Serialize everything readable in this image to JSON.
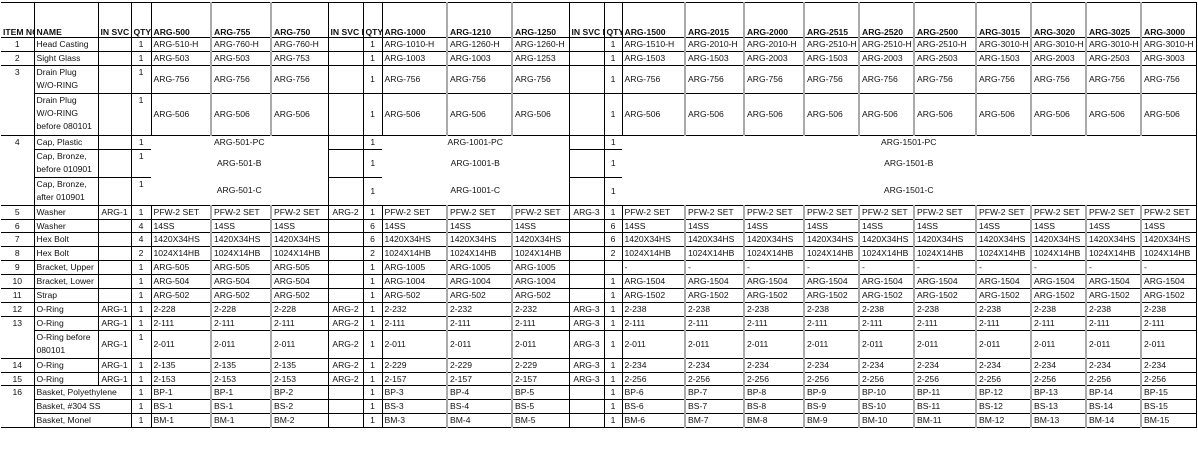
{
  "header": {
    "item_no": "ITEM NO",
    "name": "NAME",
    "kit": "IN SVC KIT",
    "qty": "QTY",
    "groups": [
      [
        "ARG-500",
        "ARG-755",
        "ARG-750"
      ],
      [
        "ARG-1000",
        "ARG-1210",
        "ARG-1250"
      ],
      [
        "ARG-1500",
        "ARG-2015",
        "ARG-2000",
        "ARG-2515",
        "ARG-2520",
        "ARG-2500",
        "ARG-3015",
        "ARG-3020",
        "ARG-3025",
        "ARG-3000"
      ]
    ]
  },
  "rows": [
    {
      "item": "1",
      "name": "Head Casting",
      "lines": 1,
      "kits": [
        "",
        "",
        ""
      ],
      "qty": [
        "1",
        "1",
        "1"
      ],
      "values": [
        "ARG-510-H",
        "ARG-760-H",
        "ARG-760-H",
        "ARG-1010-H",
        "ARG-1260-H",
        "ARG-1260-H",
        "ARG-1510-H",
        "ARG-2010-H",
        "ARG-2010-H",
        "ARG-2510-H",
        "ARG-2510-H",
        "ARG-2510-H",
        "ARG-3010-H",
        "ARG-3010-H",
        "ARG-3010-H",
        "ARG-3010-H"
      ]
    },
    {
      "item": "2",
      "name": "Sight Glass",
      "lines": 1,
      "kits": [
        "",
        "",
        ""
      ],
      "qty": [
        "1",
        "1",
        "1"
      ],
      "values": [
        "ARG-503",
        "ARG-503",
        "ARG-753",
        "ARG-1003",
        "ARG-1003",
        "ARG-1253",
        "ARG-1503",
        "ARG-1503",
        "ARG-2003",
        "ARG-1503",
        "ARG-2003",
        "ARG-2503",
        "ARG-1503",
        "ARG-2003",
        "ARG-2503",
        "ARG-3003"
      ]
    },
    {
      "item": "3",
      "name": "Drain Plug W/O-RING",
      "lines": 2,
      "kits": [
        "",
        "",
        ""
      ],
      "qty": [
        "1",
        "1",
        "1"
      ],
      "values": [
        "ARG-756",
        "ARG-756",
        "ARG-756",
        "ARG-756",
        "ARG-756",
        "ARG-756",
        "ARG-756",
        "ARG-756",
        "ARG-756",
        "ARG-756",
        "ARG-756",
        "ARG-756",
        "ARG-756",
        "ARG-756",
        "ARG-756",
        "ARG-756"
      ]
    },
    {
      "item": "",
      "name": "Drain Plug W/O-RING before 080101",
      "lines": 3,
      "kits": [
        "",
        "",
        ""
      ],
      "qty": [
        "1",
        "1",
        "1"
      ],
      "values": [
        "ARG-506",
        "ARG-506",
        "ARG-506",
        "ARG-506",
        "ARG-506",
        "ARG-506",
        "ARG-506",
        "ARG-506",
        "ARG-506",
        "ARG-506",
        "ARG-506",
        "ARG-506",
        "ARG-506",
        "ARG-506",
        "ARG-506",
        "ARG-506"
      ]
    },
    {
      "item": "4",
      "name": "Cap, Plastic",
      "lines": 1,
      "kits": [
        "",
        "",
        ""
      ],
      "qty": [
        "1",
        "1",
        "1"
      ],
      "merged": [
        "ARG-501-PC",
        "ARG-1001-PC",
        "ARG-1501-PC"
      ]
    },
    {
      "item": "",
      "name": "Cap, Bronze, before 010901",
      "lines": 2,
      "kits": [
        "",
        "",
        ""
      ],
      "qty": [
        "1",
        "1",
        "1"
      ],
      "merged": [
        "ARG-501-B",
        "ARG-1001-B",
        "ARG-1501-B"
      ]
    },
    {
      "item": "",
      "name": "Cap, Bronze, after 010901",
      "lines": 2,
      "kits": [
        "",
        "",
        ""
      ],
      "qty": [
        "1",
        "1",
        "1"
      ],
      "merged": [
        "ARG-501-C",
        "ARG-1001-C",
        "ARG-1501-C"
      ]
    },
    {
      "item": "5",
      "name": "Washer",
      "lines": 1,
      "kits": [
        "ARG-1",
        "ARG-2",
        "ARG-3"
      ],
      "qty": [
        "1",
        "1",
        "1"
      ],
      "values": [
        "PFW-2 SET",
        "PFW-2 SET",
        "PFW-2 SET",
        "PFW-2 SET",
        "PFW-2 SET",
        "PFW-2 SET",
        "PFW-2 SET",
        "PFW-2 SET",
        "PFW-2 SET",
        "PFW-2 SET",
        "PFW-2 SET",
        "PFW-2 SET",
        "PFW-2 SET",
        "PFW-2 SET",
        "PFW-2 SET",
        "PFW-2 SET"
      ]
    },
    {
      "item": "6",
      "name": "Washer",
      "lines": 1,
      "kits": [
        "",
        "",
        ""
      ],
      "qty": [
        "4",
        "6",
        "6"
      ],
      "values": [
        "14SS",
        "14SS",
        "14SS",
        "14SS",
        "14SS",
        "14SS",
        "14SS",
        "14SS",
        "14SS",
        "14SS",
        "14SS",
        "14SS",
        "14SS",
        "14SS",
        "14SS",
        "14SS"
      ]
    },
    {
      "item": "7",
      "name": "Hex Bolt",
      "lines": 1,
      "kits": [
        "",
        "",
        ""
      ],
      "qty": [
        "4",
        "6",
        "6"
      ],
      "values": [
        "1420X34HS",
        "1420X34HS",
        "1420X34HS",
        "1420X34HS",
        "1420X34HS",
        "1420X34HS",
        "1420X34HS",
        "1420X34HS",
        "1420X34HS",
        "1420X34HS",
        "1420X34HS",
        "1420X34HS",
        "1420X34HS",
        "1420X34HS",
        "1420X34HS",
        "1420X34HS"
      ]
    },
    {
      "item": "8",
      "name": "Hex Bolt",
      "lines": 1,
      "kits": [
        "",
        "",
        ""
      ],
      "qty": [
        "2",
        "2",
        "2"
      ],
      "values": [
        "1024X14HB",
        "1024X14HB",
        "1024X14HB",
        "1024X14HB",
        "1024X14HB",
        "1024X14HB",
        "1024X14HB",
        "1024X14HB",
        "1024X14HB",
        "1024X14HB",
        "1024X14HB",
        "1024X14HB",
        "1024X14HB",
        "1024X14HB",
        "1024X14HB",
        "1024X14HB"
      ]
    },
    {
      "item": "9",
      "name": "Bracket, Upper",
      "lines": 1,
      "kits": [
        "",
        "",
        ""
      ],
      "qty": [
        "1",
        "1",
        ""
      ],
      "values": [
        "ARG-505",
        "ARG-505",
        "ARG-505",
        "ARG-1005",
        "ARG-1005",
        "ARG-1005",
        "-",
        "-",
        "-",
        "-",
        "-",
        "-",
        "-",
        "-",
        "-",
        "-"
      ]
    },
    {
      "item": "10",
      "name": "Bracket, Lower",
      "lines": 1,
      "kits": [
        "",
        "",
        ""
      ],
      "qty": [
        "1",
        "1",
        "1"
      ],
      "values": [
        "ARG-504",
        "ARG-504",
        "ARG-504",
        "ARG-1004",
        "ARG-1004",
        "ARG-1004",
        "ARG-1504",
        "ARG-1504",
        "ARG-1504",
        "ARG-1504",
        "ARG-1504",
        "ARG-1504",
        "ARG-1504",
        "ARG-1504",
        "ARG-1504",
        "ARG-1504"
      ]
    },
    {
      "item": "11",
      "name": "Strap",
      "lines": 1,
      "kits": [
        "",
        "",
        ""
      ],
      "qty": [
        "1",
        "1",
        "1"
      ],
      "values": [
        "ARG-502",
        "ARG-502",
        "ARG-502",
        "ARG-502",
        "ARG-502",
        "ARG-502",
        "ARG-1502",
        "ARG-1502",
        "ARG-1502",
        "ARG-1502",
        "ARG-1502",
        "ARG-1502",
        "ARG-1502",
        "ARG-1502",
        "ARG-1502",
        "ARG-1502"
      ]
    },
    {
      "item": "12",
      "name": "O-Ring",
      "lines": 1,
      "kits": [
        "ARG-1",
        "ARG-2",
        "ARG-3"
      ],
      "qty": [
        "1",
        "1",
        "1"
      ],
      "values": [
        "2-228",
        "2-228",
        "2-228",
        "2-232",
        "2-232",
        "2-232",
        "2-238",
        "2-238",
        "2-238",
        "2-238",
        "2-238",
        "2-238",
        "2-238",
        "2-238",
        "2-238",
        "2-238"
      ]
    },
    {
      "item": "13",
      "name": "O-Ring",
      "lines": 1,
      "kits": [
        "ARG-1",
        "ARG-2",
        "ARG-3"
      ],
      "qty": [
        "1",
        "1",
        "1"
      ],
      "values": [
        "2-111",
        "2-111",
        "2-111",
        "2-111",
        "2-111",
        "2-111",
        "2-111",
        "2-111",
        "2-111",
        "2-111",
        "2-111",
        "2-111",
        "2-111",
        "2-111",
        "2-111",
        "2-111"
      ]
    },
    {
      "item": "",
      "name": "O-Ring before 080101",
      "lines": 2,
      "kits": [
        "ARG-1",
        "ARG-2",
        "ARG-3"
      ],
      "qty": [
        "1",
        "1",
        "1"
      ],
      "values": [
        "2-011",
        "2-011",
        "2-011",
        "2-011",
        "2-011",
        "2-011",
        "2-011",
        "2-011",
        "2-011",
        "2-011",
        "2-011",
        "2-011",
        "2-011",
        "2-011",
        "2-011",
        "2-011"
      ]
    },
    {
      "item": "14",
      "name": "O-Ring",
      "lines": 1,
      "kits": [
        "ARG-1",
        "ARG-2",
        "ARG-3"
      ],
      "qty": [
        "1",
        "1",
        "1"
      ],
      "values": [
        "2-135",
        "2-135",
        "2-135",
        "2-229",
        "2-229",
        "2-229",
        "2-234",
        "2-234",
        "2-234",
        "2-234",
        "2-234",
        "2-234",
        "2-234",
        "2-234",
        "2-234",
        "2-234"
      ]
    },
    {
      "item": "15",
      "name": "O-Ring",
      "lines": 1,
      "kits": [
        "ARG-1",
        "ARG-2",
        "ARG-3"
      ],
      "qty": [
        "1",
        "1",
        "1"
      ],
      "values": [
        "2-153",
        "2-153",
        "2-153",
        "2-157",
        "2-157",
        "2-157",
        "2-256",
        "2-256",
        "2-256",
        "2-256",
        "2-256",
        "2-256",
        "2-256",
        "2-256",
        "2-256",
        "2-256"
      ]
    },
    {
      "item": "16",
      "name": "Basket, Polyethylene",
      "wide_name": true,
      "lines": 1,
      "kits": [
        "",
        "",
        ""
      ],
      "qty": [
        "1",
        "1",
        "1"
      ],
      "values": [
        "BP-1",
        "BP-1",
        "BP-2",
        "BP-3",
        "BP-4",
        "BP-5",
        "BP-6",
        "BP-7",
        "BP-8",
        "BP-9",
        "BP-10",
        "BP-11",
        "BP-12",
        "BP-13",
        "BP-14",
        "BP-15"
      ]
    },
    {
      "item": "",
      "name": "Basket, #304 SS",
      "wide_name": true,
      "lines": 1,
      "kits": [
        "",
        "",
        ""
      ],
      "qty": [
        "1",
        "1",
        "1"
      ],
      "values": [
        "BS-1",
        "BS-1",
        "BS-2",
        "BS-3",
        "BS-4",
        "BS-5",
        "BS-6",
        "BS-7",
        "BS-8",
        "BS-9",
        "BS-10",
        "BS-11",
        "BS-12",
        "BS-13",
        "BS-14",
        "BS-15"
      ]
    },
    {
      "item": "",
      "name": "Basket, Monel",
      "wide_name": true,
      "lines": 1,
      "kits": [
        "",
        "",
        ""
      ],
      "qty": [
        "1",
        "1",
        "1"
      ],
      "values": [
        "BM-1",
        "BM-1",
        "BM-2",
        "BM-3",
        "BM-4",
        "BM-5",
        "BM-6",
        "BM-7",
        "BM-8",
        "BM-9",
        "BM-10",
        "BM-11",
        "BM-12",
        "BM-13",
        "BM-14",
        "BM-15"
      ]
    }
  ]
}
